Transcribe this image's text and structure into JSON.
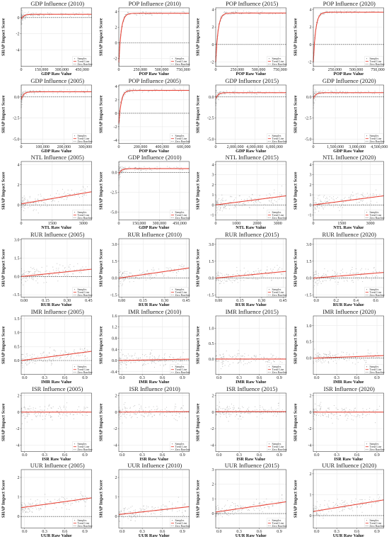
{
  "figure": {
    "y_axis_label": "SHAP Impact Score",
    "legend": {
      "samples": "Samples",
      "trend": "Trend Line",
      "zero": "Zero Baseline"
    },
    "colors": {
      "samples": "#8a8a8a",
      "trend": "#e8483c",
      "zero": "#333333"
    }
  },
  "chart_data": [
    {
      "title": "GDP Influence (2010)",
      "xlabel": "GDP Raw Value",
      "ylabel": "SHAP Impact Score",
      "type": "scatter",
      "grid": true,
      "xlim": [
        0,
        520000
      ],
      "ylim": [
        -6,
        1.2
      ],
      "xticks": [
        "0",
        "150,000",
        "300,000",
        "450,000"
      ],
      "xtick_vals": [
        0,
        150000,
        300000,
        450000
      ],
      "yticks": [
        "0",
        "-2",
        "-4"
      ],
      "ytick_vals": [
        0,
        -2,
        -4
      ],
      "trend": {
        "shape": "sat",
        "start": -0.2,
        "end": 0.4
      }
    },
    {
      "title": "POP Influence (2010)",
      "xlabel": "POP Raw Value",
      "ylabel": "SHAP Impact Score",
      "type": "scatter",
      "grid": true,
      "xlim": [
        0,
        820000
      ],
      "ylim": [
        -3,
        4.5
      ],
      "xticks": [
        "0",
        "250,000",
        "500,000",
        "750,000"
      ],
      "xtick_vals": [
        0,
        250000,
        500000,
        750000
      ],
      "yticks": [
        "4",
        "2",
        "0",
        "-2"
      ],
      "ytick_vals": [
        4,
        2,
        0,
        -2
      ],
      "trend": {
        "shape": "sat",
        "start": -2.5,
        "end": 3.8
      }
    },
    {
      "title": "POP Influence (2015)",
      "xlabel": "POP Raw Value",
      "ylabel": "SHAP Impact Score",
      "type": "scatter",
      "grid": true,
      "xlim": [
        0,
        820000
      ],
      "ylim": [
        -2.5,
        4.2
      ],
      "xticks": [
        "0",
        "250,000",
        "500,000",
        "750,000"
      ],
      "xtick_vals": [
        0,
        250000,
        500000,
        750000
      ],
      "yticks": [
        "4",
        "2",
        "0",
        "-2"
      ],
      "ytick_vals": [
        4,
        2,
        0,
        -2
      ],
      "trend": {
        "shape": "sat",
        "start": -2.0,
        "end": 3.6
      }
    },
    {
      "title": "POP Influence (2020)",
      "xlabel": "POP Raw Value",
      "ylabel": "SHAP Impact Score",
      "type": "scatter",
      "grid": true,
      "xlim": [
        0,
        820000
      ],
      "ylim": [
        -2.5,
        4.2
      ],
      "xticks": [
        "0",
        "250,000",
        "500,000",
        "750,000"
      ],
      "xtick_vals": [
        0,
        250000,
        500000,
        750000
      ],
      "yticks": [
        "4",
        "2",
        "0",
        "-2"
      ],
      "ytick_vals": [
        4,
        2,
        0,
        -2
      ],
      "trend": {
        "shape": "sat",
        "start": -2.0,
        "end": 3.7
      }
    },
    {
      "title": "GDP Influence (2005)",
      "xlabel": "GDP Raw Value",
      "ylabel": "SHAP Impact Score",
      "type": "scatter",
      "grid": true,
      "xlim": [
        0,
        330000
      ],
      "ylim": [
        -5.5,
        1.4
      ],
      "xticks": [
        "0",
        "100,000",
        "200,000",
        "300,000"
      ],
      "xtick_vals": [
        0,
        100000,
        200000,
        300000
      ],
      "yticks": [
        "0.0",
        "-2.5",
        "-5.0"
      ],
      "ytick_vals": [
        0,
        -2.5,
        -5
      ],
      "trend": {
        "shape": "sat",
        "start": -0.3,
        "end": 0.6
      }
    },
    {
      "title": "POP Influence (2005)",
      "xlabel": "POP Raw Value",
      "ylabel": "SHAP Impact Score",
      "type": "scatter",
      "grid": true,
      "xlim": [
        0,
        650000
      ],
      "ylim": [
        -4.5,
        4.2
      ],
      "xticks": [
        "0",
        "200,000",
        "400,000",
        "600,000"
      ],
      "xtick_vals": [
        0,
        200000,
        400000,
        600000
      ],
      "yticks": [
        "4",
        "2",
        "0",
        "-2",
        "-4"
      ],
      "ytick_vals": [
        4,
        2,
        0,
        -2,
        -4
      ],
      "trend": {
        "shape": "sat",
        "start": -1.5,
        "end": 3.4
      }
    },
    {
      "title": "GDP Influence (2015)",
      "xlabel": "GDP Raw Value",
      "ylabel": "SHAP Impact Score",
      "type": "scatter",
      "grid": true,
      "xlim": [
        0,
        7200000
      ],
      "ylim": [
        -5.5,
        1.4
      ],
      "xticks": [
        "0",
        "2,000,000",
        "4,000,000",
        "6,000,000"
      ],
      "xtick_vals": [
        0,
        2000000,
        4000000,
        6000000
      ],
      "yticks": [
        "0.0",
        "-2.5",
        "-5.0"
      ],
      "ytick_vals": [
        0,
        -2.5,
        -5
      ],
      "trend": {
        "shape": "sat",
        "start": -0.2,
        "end": 0.5
      }
    },
    {
      "title": "GDP Influence (2020)",
      "xlabel": "GDP Raw Value",
      "ylabel": "SHAP Impact Score",
      "type": "scatter",
      "grid": true,
      "xlim": [
        0,
        4800000
      ],
      "ylim": [
        -5.5,
        1.4
      ],
      "xticks": [
        "0",
        "1,500,000",
        "3,000,000",
        "4,500,000"
      ],
      "xtick_vals": [
        0,
        1500000,
        3000000,
        4500000
      ],
      "yticks": [
        "0.0",
        "-2.5",
        "-5.0"
      ],
      "ytick_vals": [
        0,
        -2.5,
        -5
      ],
      "trend": {
        "shape": "sat",
        "start": -0.2,
        "end": 0.5
      }
    },
    {
      "title": "NTL Influence (2005)",
      "xlabel": "NTL Raw Value",
      "ylabel": "SHAP Impact Score",
      "type": "scatter",
      "grid": true,
      "xlim": [
        0,
        3400
      ],
      "ylim": [
        -1.5,
        4.3
      ],
      "xticks": [
        "0",
        "1500",
        "3000"
      ],
      "xtick_vals": [
        0,
        1500,
        3000
      ],
      "yticks": [
        "4",
        "2",
        "0"
      ],
      "ytick_vals": [
        4,
        2,
        0
      ],
      "trend": {
        "shape": "lin",
        "start": 0.1,
        "end": 1.3
      }
    },
    {
      "title": "GDP Influence (2010)",
      "xlabel": "GDP Raw Value",
      "ylabel": "SHAP Impact Score",
      "type": "scatter",
      "grid": true,
      "xlim": [
        0,
        520000
      ],
      "ylim": [
        -6,
        1.4
      ],
      "xticks": [
        "0",
        "150,000",
        "300,000",
        "450,000"
      ],
      "xtick_vals": [
        0,
        150000,
        300000,
        450000
      ],
      "yticks": [
        "0.0",
        "-2.5",
        "-5.0"
      ],
      "ytick_vals": [
        0,
        -2.5,
        -5
      ],
      "trend": {
        "shape": "sat",
        "start": -0.2,
        "end": 0.5
      }
    },
    {
      "title": "NTL Influence (2015)",
      "xlabel": "NTL Raw Value",
      "ylabel": "SHAP Impact Score",
      "type": "scatter",
      "grid": true,
      "xlim": [
        0,
        3400
      ],
      "ylim": [
        -1.5,
        4.3
      ],
      "xticks": [
        "0",
        "1000",
        "2000",
        "3000"
      ],
      "xtick_vals": [
        0,
        1000,
        2000,
        3000
      ],
      "yticks": [
        "4",
        "3",
        "2",
        "1",
        "0",
        "-1"
      ],
      "ytick_vals": [
        4,
        3,
        2,
        1,
        0,
        -1
      ],
      "trend": {
        "shape": "lin",
        "start": 0.0,
        "end": 0.9
      }
    },
    {
      "title": "NTL Influence (2020)",
      "xlabel": "NTL Raw Value",
      "ylabel": "SHAP Impact Score",
      "type": "scatter",
      "grid": true,
      "xlim": [
        0,
        3700
      ],
      "ylim": [
        -1.5,
        4.3
      ],
      "xticks": [
        "0",
        "1500",
        "3000"
      ],
      "xtick_vals": [
        0,
        1500,
        3000
      ],
      "yticks": [
        "4",
        "3",
        "2",
        "1",
        "0",
        "-1"
      ],
      "ytick_vals": [
        4,
        3,
        2,
        1,
        0,
        -1
      ],
      "trend": {
        "shape": "lin",
        "start": 0.0,
        "end": 0.9
      }
    },
    {
      "title": "RUR Influence (2005)",
      "xlabel": "RUR Raw Value",
      "ylabel": "SHAP Impact Score",
      "type": "scatter",
      "grid": true,
      "xlim": [
        -0.02,
        0.47
      ],
      "ylim": [
        -1.7,
        3.1
      ],
      "xticks": [
        "0.00",
        "0.15",
        "0.30",
        "0.45"
      ],
      "xtick_vals": [
        0,
        0.15,
        0.3,
        0.45
      ],
      "yticks": [
        "3.0",
        "1.5",
        "0.0",
        "-1.5"
      ],
      "ytick_vals": [
        3,
        1.5,
        0,
        -1.5
      ],
      "trend": {
        "shape": "lin",
        "start": 0.0,
        "end": 0.6
      }
    },
    {
      "title": "RUR Influence (2010)",
      "xlabel": "RUR Raw Value",
      "ylabel": "SHAP Impact Score",
      "type": "scatter",
      "grid": true,
      "xlim": [
        -0.02,
        0.47
      ],
      "ylim": [
        -1.7,
        3.5
      ],
      "xticks": [
        "0.00",
        "0.15",
        "0.30",
        "0.45"
      ],
      "xtick_vals": [
        0,
        0.15,
        0.3,
        0.45
      ],
      "yticks": [
        "3.0",
        "1.5",
        "0.0",
        "-1.5"
      ],
      "ytick_vals": [
        3,
        1.5,
        0,
        -1.5
      ],
      "trend": {
        "shape": "lin",
        "start": 0.0,
        "end": 0.9
      }
    },
    {
      "title": "RUR Influence (2015)",
      "xlabel": "RUR Raw Value",
      "ylabel": "SHAP Impact Score",
      "type": "scatter",
      "grid": true,
      "xlim": [
        -0.02,
        0.47
      ],
      "ylim": [
        -1.7,
        3.5
      ],
      "xticks": [
        "0.00",
        "0.15",
        "0.30",
        "0.45"
      ],
      "xtick_vals": [
        0,
        0.15,
        0.3,
        0.45
      ],
      "yticks": [
        "3.0",
        "1.5",
        "0.0",
        "-1.5"
      ],
      "ytick_vals": [
        3,
        1.5,
        0,
        -1.5
      ],
      "trend": {
        "shape": "lin",
        "start": 0.0,
        "end": 0.6
      }
    },
    {
      "title": "RUR Influence (2020)",
      "xlabel": "RUR Raw Value",
      "ylabel": "SHAP Impact Score",
      "type": "scatter",
      "grid": true,
      "xlim": [
        -0.03,
        0.68
      ],
      "ylim": [
        -1.7,
        3.5
      ],
      "xticks": [
        "0.0",
        "0.2",
        "0.4",
        "0.6"
      ],
      "xtick_vals": [
        0,
        0.2,
        0.4,
        0.6
      ],
      "yticks": [
        "3.0",
        "1.5",
        "0.0",
        "-1.5"
      ],
      "ytick_vals": [
        3,
        1.5,
        0,
        -1.5
      ],
      "trend": {
        "shape": "lin",
        "start": 0.0,
        "end": 0.5
      }
    },
    {
      "title": "IMR Influence (2005)",
      "xlabel": "IMR Raw Value",
      "ylabel": "SHAP Impact Score",
      "type": "scatter",
      "grid": true,
      "xlim": [
        -0.05,
        1.0
      ],
      "ylim": [
        -0.5,
        1.6
      ],
      "xticks": [
        "0.0",
        "0.3",
        "0.6",
        "0.9"
      ],
      "xtick_vals": [
        0,
        0.3,
        0.6,
        0.9
      ],
      "yticks": [
        "1.5",
        "1.0",
        "0.5",
        "0.0"
      ],
      "ytick_vals": [
        1.5,
        1.0,
        0.5,
        0.0
      ],
      "trend": {
        "shape": "lin",
        "start": 0.0,
        "end": 0.33
      }
    },
    {
      "title": "IMR Influence (2010)",
      "xlabel": "IMR Raw Value",
      "ylabel": "SHAP Impact Score",
      "type": "scatter",
      "grid": true,
      "xlim": [
        -0.05,
        1.0
      ],
      "ylim": [
        -0.5,
        1.6
      ],
      "xticks": [
        "0.0",
        "0.3",
        "0.6",
        "0.9"
      ],
      "xtick_vals": [
        0,
        0.3,
        0.6,
        0.9
      ],
      "yticks": [
        "1.6",
        "1.2",
        "0.8",
        "0.4",
        "0.0",
        "-0.4"
      ],
      "ytick_vals": [
        1.6,
        1.2,
        0.8,
        0.4,
        0.0,
        -0.4
      ],
      "trend": {
        "shape": "lin",
        "start": 0.0,
        "end": 0.05
      }
    },
    {
      "title": "IMR Influence (2015)",
      "xlabel": "IMR Raw Value",
      "ylabel": "SHAP Impact Score",
      "type": "scatter",
      "grid": true,
      "xlim": [
        -0.05,
        1.0
      ],
      "ylim": [
        -0.5,
        1.4
      ],
      "xticks": [
        "0.0",
        "0.3",
        "0.6",
        "0.9"
      ],
      "xtick_vals": [
        0,
        0.3,
        0.6,
        0.9
      ],
      "yticks": [
        "1.0",
        "0.5",
        "0.0"
      ],
      "ytick_vals": [
        1.0,
        0.5,
        0.0
      ],
      "trend": {
        "shape": "lin",
        "start": 0.0,
        "end": 0.0
      }
    },
    {
      "title": "IMR Influence (2020)",
      "xlabel": "IMR Raw Value",
      "ylabel": "SHAP Impact Score",
      "type": "scatter",
      "grid": true,
      "xlim": [
        -0.05,
        1.0
      ],
      "ylim": [
        -0.5,
        1.3
      ],
      "xticks": [
        "0.0",
        "0.3",
        "0.6",
        "0.9"
      ],
      "xtick_vals": [
        0,
        0.3,
        0.6,
        0.9
      ],
      "yticks": [
        "1.0",
        "0.5",
        "0.0"
      ],
      "ytick_vals": [
        1.0,
        0.5,
        0.0
      ],
      "trend": {
        "shape": "lin",
        "start": 0.0,
        "end": 0.08
      }
    },
    {
      "title": "ISR Influence (2005)",
      "xlabel": "ISR Raw Value",
      "ylabel": "SHAP Impact Score",
      "type": "scatter",
      "grid": true,
      "xlim": [
        -0.05,
        1.0
      ],
      "ylim": [
        -4.8,
        2.3
      ],
      "xticks": [
        "0.0",
        "0.3",
        "0.6",
        "0.9"
      ],
      "xtick_vals": [
        0,
        0.3,
        0.6,
        0.9
      ],
      "yticks": [
        "2",
        "0",
        "-2",
        "-4"
      ],
      "ytick_vals": [
        2,
        0,
        -2,
        -4
      ],
      "trend": {
        "shape": "lin",
        "start": 0.0,
        "end": 0.0
      }
    },
    {
      "title": "ISR Influence (2010)",
      "xlabel": "ISR Raw Value",
      "ylabel": "SHAP Impact Score",
      "type": "scatter",
      "grid": true,
      "xlim": [
        -0.05,
        1.0
      ],
      "ylim": [
        -4.8,
        2.3
      ],
      "xticks": [
        "0.0",
        "0.3",
        "0.6",
        "0.9"
      ],
      "xtick_vals": [
        0,
        0.3,
        0.6,
        0.9
      ],
      "yticks": [
        "2",
        "0",
        "-2",
        "-4"
      ],
      "ytick_vals": [
        2,
        0,
        -2,
        -4
      ],
      "trend": {
        "shape": "lin",
        "start": 0.0,
        "end": 0.05
      }
    },
    {
      "title": "ISR Influence (2015)",
      "xlabel": "ISR Raw Value",
      "ylabel": "SHAP Impact Score",
      "type": "scatter",
      "grid": true,
      "xlim": [
        -0.05,
        1.0
      ],
      "ylim": [
        -4.8,
        2.3
      ],
      "xticks": [
        "0.0",
        "0.3",
        "0.6",
        "0.9"
      ],
      "xtick_vals": [
        0,
        0.3,
        0.6,
        0.9
      ],
      "yticks": [
        "2",
        "0",
        "-2",
        "-4"
      ],
      "ytick_vals": [
        2,
        0,
        -2,
        -4
      ],
      "trend": {
        "shape": "lin",
        "start": 0.05,
        "end": 0.05
      }
    },
    {
      "title": "ISR Influence (2020)",
      "xlabel": "ISR Raw Value",
      "ylabel": "SHAP Impact Score",
      "type": "scatter",
      "grid": true,
      "xlim": [
        -0.05,
        1.0
      ],
      "ylim": [
        -4.8,
        2.3
      ],
      "xticks": [
        "0.0",
        "0.3",
        "0.6",
        "0.9"
      ],
      "xtick_vals": [
        0,
        0.3,
        0.6,
        0.9
      ],
      "yticks": [
        "2",
        "0",
        "-2",
        "-4"
      ],
      "ytick_vals": [
        2,
        0,
        -2,
        -4
      ],
      "trend": {
        "shape": "lin",
        "start": 0.0,
        "end": 0.0
      }
    },
    {
      "title": "UUR Influence (2005)",
      "xlabel": "UUR Raw Value",
      "ylabel": "SHAP Impact Score",
      "type": "scatter",
      "grid": true,
      "xlim": [
        -0.05,
        1.0
      ],
      "ylim": [
        -0.6,
        2.4
      ],
      "xticks": [
        "0.0",
        "0.3",
        "0.6",
        "0.9"
      ],
      "xtick_vals": [
        0,
        0.3,
        0.6,
        0.9
      ],
      "yticks": [
        "2",
        "1",
        "0"
      ],
      "ytick_vals": [
        2,
        1,
        0
      ],
      "trend": {
        "shape": "lin",
        "start": 0.45,
        "end": 0.95
      }
    },
    {
      "title": "UUR Influence (2010)",
      "xlabel": "UUR Raw Value",
      "ylabel": "SHAP Impact Score",
      "type": "scatter",
      "grid": true,
      "xlim": [
        -0.05,
        1.0
      ],
      "ylim": [
        -0.6,
        2.4
      ],
      "xticks": [
        "0.0",
        "0.3",
        "0.6",
        "0.9"
      ],
      "xtick_vals": [
        0,
        0.3,
        0.6,
        0.9
      ],
      "yticks": [
        "2",
        "1",
        "0"
      ],
      "ytick_vals": [
        2,
        1,
        0
      ],
      "trend": {
        "shape": "lin",
        "start": 0.1,
        "end": 0.5
      }
    },
    {
      "title": "UUR Influence (2015)",
      "xlabel": "UUR Raw Value",
      "ylabel": "SHAP Impact Score",
      "type": "scatter",
      "grid": true,
      "xlim": [
        -0.05,
        1.0
      ],
      "ylim": [
        -1.0,
        3.0
      ],
      "xticks": [
        "0.0",
        "0.3",
        "0.6",
        "0.9"
      ],
      "xtick_vals": [
        0,
        0.3,
        0.6,
        0.9
      ],
      "yticks": [
        "3",
        "2",
        "1",
        "0"
      ],
      "ytick_vals": [
        3,
        2,
        1,
        0
      ],
      "trend": {
        "shape": "lin",
        "start": 0.1,
        "end": 0.8
      }
    },
    {
      "title": "UUR Influence (2020)",
      "xlabel": "UUR Raw Value",
      "ylabel": "SHAP Impact Score",
      "type": "scatter",
      "grid": true,
      "xlim": [
        -0.05,
        1.0
      ],
      "ylim": [
        -0.6,
        2.2
      ],
      "xticks": [
        "0.0",
        "0.3",
        "0.6",
        "0.9"
      ],
      "xtick_vals": [
        0,
        0.3,
        0.6,
        0.9
      ],
      "yticks": [
        "2",
        "1",
        "0"
      ],
      "ytick_vals": [
        2,
        1,
        0
      ],
      "trend": {
        "shape": "lin",
        "start": 0.2,
        "end": 0.75
      }
    }
  ]
}
